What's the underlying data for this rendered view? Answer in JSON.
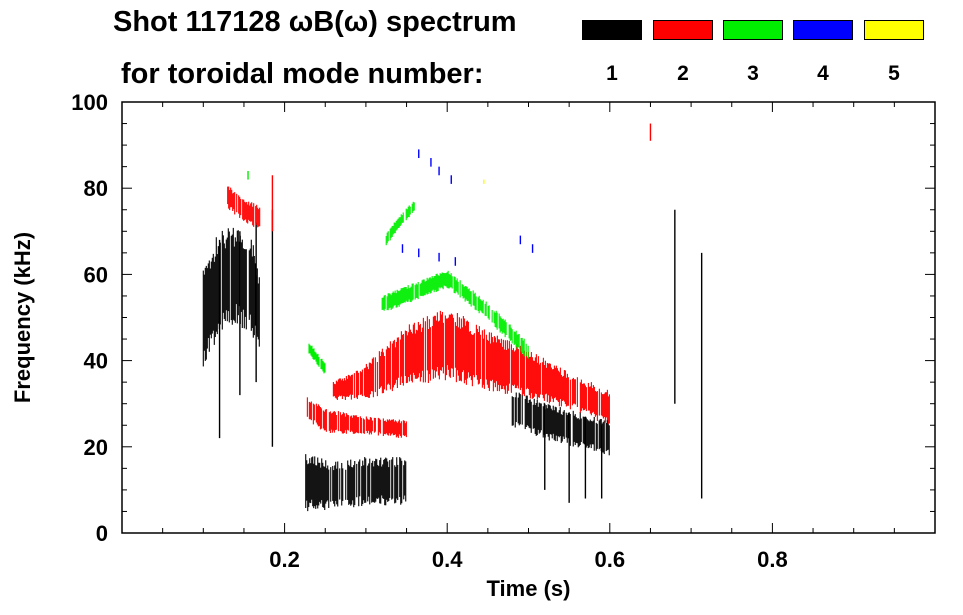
{
  "chart_data": {
    "type": "spectrogram",
    "title_line1": "Shot 117128 ωB(ω) spectrum",
    "title_line2": "for toroidal mode number:",
    "xlabel": "Time (s)",
    "ylabel": "Frequency (kHz)",
    "xlim": [
      0.0,
      1.0
    ],
    "ylim": [
      0,
      100
    ],
    "x_ticks": [
      {
        "value": 0.2,
        "label": "0.2"
      },
      {
        "value": 0.4,
        "label": "0.4"
      },
      {
        "value": 0.6,
        "label": "0.6"
      },
      {
        "value": 0.8,
        "label": "0.8"
      }
    ],
    "y_ticks": [
      {
        "value": 0,
        "label": "0"
      },
      {
        "value": 20,
        "label": "20"
      },
      {
        "value": 40,
        "label": "40"
      },
      {
        "value": 60,
        "label": "60"
      },
      {
        "value": 80,
        "label": "80"
      },
      {
        "value": 100,
        "label": "100"
      }
    ],
    "legend": [
      {
        "mode": "1",
        "color": "#000000"
      },
      {
        "mode": "2",
        "color": "#ff0000"
      },
      {
        "mode": "3",
        "color": "#00ee00"
      },
      {
        "mode": "4",
        "color": "#0000ff"
      },
      {
        "mode": "5",
        "color": "#ffff00"
      }
    ],
    "series": [
      {
        "name": "n=1",
        "color": "#000000",
        "bands": [
          {
            "t": [
              0.1,
              0.12,
              0.14,
              0.16,
              0.17
            ],
            "f_center": [
              50,
              58,
              60,
              57,
              50
            ],
            "half_width": [
              8,
              9,
              8,
              8,
              6
            ]
          },
          {
            "t": [
              0.226,
              0.26,
              0.3,
              0.33,
              0.35
            ],
            "f_center": [
              12,
              11,
              12,
              12,
              12
            ],
            "half_width": [
              5,
              4,
              4,
              4,
              4
            ]
          },
          {
            "t": [
              0.48,
              0.52,
              0.56,
              0.6
            ],
            "f_center": [
              29,
              26,
              24,
              22
            ],
            "half_width": [
              3,
              3,
              3,
              3
            ]
          }
        ],
        "streaks": [
          {
            "t": 0.12,
            "f_low": 22,
            "f_high": 68
          },
          {
            "t": 0.145,
            "f_low": 32,
            "f_high": 70
          },
          {
            "t": 0.165,
            "f_low": 35,
            "f_high": 72
          },
          {
            "t": 0.185,
            "f_low": 20,
            "f_high": 75
          },
          {
            "t": 0.52,
            "f_low": 10,
            "f_high": 30
          },
          {
            "t": 0.55,
            "f_low": 7,
            "f_high": 28
          },
          {
            "t": 0.57,
            "f_low": 8,
            "f_high": 27
          },
          {
            "t": 0.59,
            "f_low": 8,
            "f_high": 25
          },
          {
            "t": 0.68,
            "f_low": 30,
            "f_high": 75
          },
          {
            "t": 0.713,
            "f_low": 8,
            "f_high": 65
          }
        ]
      },
      {
        "name": "n=2",
        "color": "#ff0000",
        "bands": [
          {
            "t": [
              0.13,
              0.15,
              0.17
            ],
            "f_center": [
              78,
              75,
              73
            ],
            "half_width": [
              2,
              2,
              2
            ]
          },
          {
            "t": [
              0.228,
              0.25,
              0.3,
              0.35
            ],
            "f_center": [
              29,
              26,
              25,
              24
            ],
            "half_width": [
              2,
              2,
              1.5,
              1.5
            ]
          },
          {
            "t": [
              0.26,
              0.3,
              0.35,
              0.4,
              0.45,
              0.5,
              0.55,
              0.6
            ],
            "f_center": [
              33,
              35,
              41,
              44,
              40,
              37,
              33,
              29
            ],
            "half_width": [
              1.5,
              3,
              5,
              6,
              5,
              4,
              3,
              3
            ]
          }
        ],
        "streaks": [
          {
            "t": 0.185,
            "f_low": 70,
            "f_high": 83
          },
          {
            "t": 0.65,
            "f_low": 91,
            "f_high": 95
          }
        ]
      },
      {
        "name": "n=3",
        "color": "#00ee00",
        "bands": [
          {
            "t": [
              0.325,
              0.34,
              0.36
            ],
            "f_center": [
              68,
              72,
              76
            ],
            "half_width": [
              1,
              1,
              1
            ]
          },
          {
            "t": [
              0.32,
              0.36,
              0.4,
              0.44,
              0.48,
              0.5
            ],
            "f_center": [
              53,
              56,
              59,
              53,
              46,
              42
            ],
            "half_width": [
              1.5,
              1.5,
              1.5,
              1.5,
              1.5,
              1.5
            ]
          },
          {
            "t": [
              0.23,
              0.25
            ],
            "f_center": [
              43,
              38
            ],
            "half_width": [
              1,
              1
            ]
          }
        ],
        "streaks": [
          {
            "t": 0.155,
            "f_low": 82,
            "f_high": 84
          }
        ]
      },
      {
        "name": "n=4",
        "color": "#0000ff",
        "bands": [],
        "streaks": [
          {
            "t": 0.365,
            "f_low": 87,
            "f_high": 89
          },
          {
            "t": 0.38,
            "f_low": 85,
            "f_high": 87
          },
          {
            "t": 0.39,
            "f_low": 83,
            "f_high": 85
          },
          {
            "t": 0.405,
            "f_low": 81,
            "f_high": 83
          },
          {
            "t": 0.345,
            "f_low": 65,
            "f_high": 67
          },
          {
            "t": 0.365,
            "f_low": 64,
            "f_high": 66
          },
          {
            "t": 0.39,
            "f_low": 63,
            "f_high": 65
          },
          {
            "t": 0.41,
            "f_low": 62,
            "f_high": 64
          },
          {
            "t": 0.49,
            "f_low": 67,
            "f_high": 69
          },
          {
            "t": 0.505,
            "f_low": 65,
            "f_high": 67
          }
        ]
      },
      {
        "name": "n=5",
        "color": "#ffff00",
        "bands": [],
        "streaks": [
          {
            "t": 0.445,
            "f_low": 81,
            "f_high": 82
          }
        ]
      }
    ]
  }
}
